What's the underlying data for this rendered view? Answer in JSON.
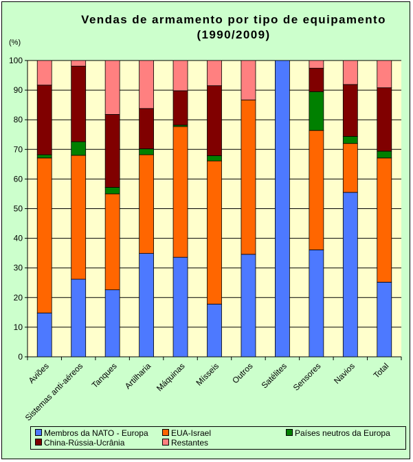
{
  "chart_data": {
    "type": "bar",
    "stacked": true,
    "title_line1": "Vendas de armamento por tipo de equipamento",
    "title_line2": "(1990/2009)",
    "ylabel": "(%)",
    "ylim": [
      0,
      100
    ],
    "yticks": [
      "0",
      "10",
      "20",
      "30",
      "40",
      "50",
      "60",
      "70",
      "80",
      "90",
      "100"
    ],
    "categories": [
      "Aviões",
      "Sistemas anti-aéreos",
      "Tanques",
      "Artilharia",
      "Máquinas",
      "Mísseis",
      "Outros",
      "Satélites",
      "Sensores",
      "Navios",
      "Total"
    ],
    "series": [
      {
        "name": "Membros da NATO - Europa",
        "color": "#4d79ff",
        "values": [
          14.8,
          26.2,
          22.6,
          34.9,
          33.6,
          17.8,
          34.6,
          100,
          36.1,
          55.5,
          25.2
        ]
      },
      {
        "name": "EUA-Israel",
        "color": "#ff6600",
        "values": [
          52.3,
          41.8,
          32.4,
          33.3,
          44.1,
          48.3,
          52.1,
          0,
          40.3,
          16.5,
          41.9
        ]
      },
      {
        "name": "Países neutros da Europa",
        "color": "#008000",
        "values": [
          1.1,
          4.6,
          2.2,
          2.0,
          0.5,
          1.8,
          0,
          0,
          13.1,
          2.4,
          2.3
        ]
      },
      {
        "name": "China-Rússia-Ucrânia",
        "color": "#800000",
        "values": [
          23.5,
          25.5,
          24.6,
          13.6,
          11.6,
          23.6,
          0,
          0,
          7.9,
          17.5,
          21.4
        ]
      },
      {
        "name": "Restantes",
        "color": "#ff8080",
        "values": [
          8.3,
          1.9,
          18.2,
          16.2,
          10.2,
          8.5,
          13.3,
          0,
          2.6,
          8.1,
          9.2
        ]
      }
    ]
  }
}
